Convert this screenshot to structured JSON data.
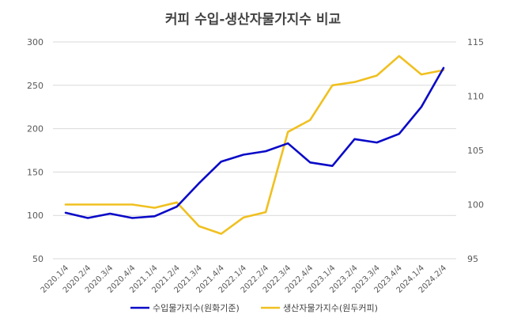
{
  "chart_data": {
    "type": "line",
    "title": "커피 수입-생산자물가지수 비교",
    "categories": [
      "2020.1/4",
      "2020.2/4",
      "2020.3/4",
      "2020.4/4",
      "2021.1/4",
      "2021.2/4",
      "2021.3/4",
      "2021.4/4",
      "2022.1/4",
      "2022.2/4",
      "2022.3/4",
      "2022.4/4",
      "2023.1/4",
      "2023.2/4",
      "2023.3/4",
      "2023.4/4",
      "2024.1/4",
      "2024.2/4"
    ],
    "y_left": {
      "min": 50,
      "max": 300,
      "ticks": [
        50,
        100,
        150,
        200,
        250,
        300
      ]
    },
    "y_right": {
      "min": 95,
      "max": 115,
      "ticks": [
        95,
        100,
        105,
        110,
        115
      ]
    },
    "series": [
      {
        "name": "수입물가지수(원화기준)",
        "axis": "left",
        "color": "#0a0ac8",
        "values": [
          103,
          97,
          102,
          97,
          99,
          110,
          137,
          162,
          170,
          174,
          183,
          161,
          157,
          188,
          184,
          194,
          225,
          270
        ]
      },
      {
        "name": "생산자물가지수(원두커피)",
        "axis": "right",
        "color": "#f0c020",
        "values": [
          100.0,
          100.0,
          100.0,
          100.0,
          99.7,
          100.2,
          98.0,
          97.3,
          98.8,
          99.3,
          106.7,
          107.8,
          111.0,
          111.3,
          111.9,
          113.7,
          112.0,
          112.4
        ]
      }
    ],
    "legend_position": "bottom",
    "grid": true
  }
}
